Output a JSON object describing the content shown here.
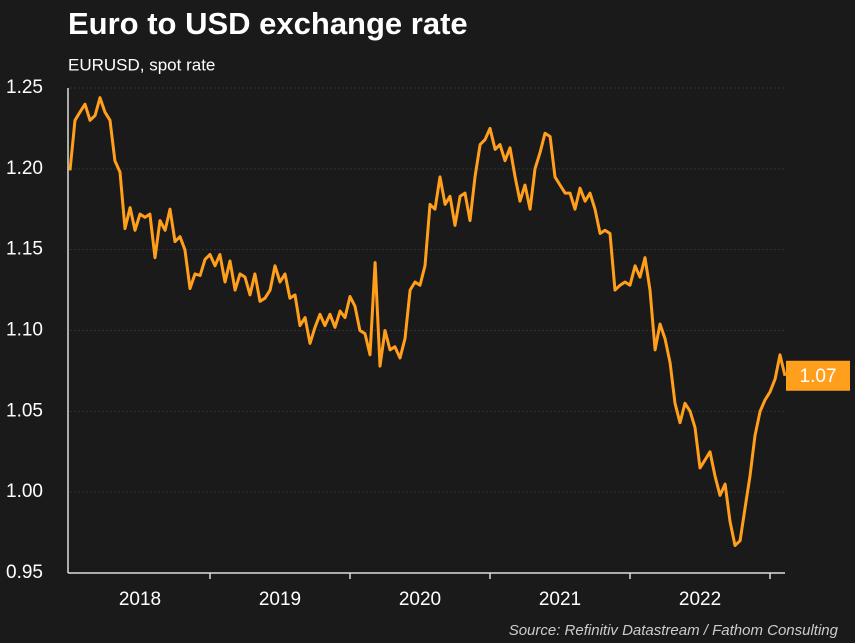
{
  "chart_data": {
    "type": "line",
    "title": "Euro to USD exchange rate",
    "subtitle": "EURUSD, spot rate",
    "source": "Source: Refinitiv Datastream / Fathom Consulting",
    "x": [
      2018,
      2018.036,
      2018.071,
      2018.107,
      2018.143,
      2018.179,
      2018.214,
      2018.25,
      2018.286,
      2018.321,
      2018.357,
      2018.393,
      2018.429,
      2018.464,
      2018.5,
      2018.536,
      2018.571,
      2018.607,
      2018.643,
      2018.679,
      2018.714,
      2018.75,
      2018.786,
      2018.821,
      2018.857,
      2018.893,
      2018.929,
      2018.964,
      2019,
      2019.036,
      2019.071,
      2019.107,
      2019.143,
      2019.179,
      2019.214,
      2019.25,
      2019.286,
      2019.321,
      2019.357,
      2019.393,
      2019.429,
      2019.464,
      2019.5,
      2019.536,
      2019.571,
      2019.607,
      2019.643,
      2019.679,
      2019.714,
      2019.75,
      2019.786,
      2019.821,
      2019.857,
      2019.893,
      2019.929,
      2019.964,
      2020,
      2020.036,
      2020.071,
      2020.107,
      2020.143,
      2020.179,
      2020.214,
      2020.25,
      2020.286,
      2020.321,
      2020.357,
      2020.393,
      2020.429,
      2020.464,
      2020.5,
      2020.536,
      2020.571,
      2020.607,
      2020.643,
      2020.679,
      2020.714,
      2020.75,
      2020.786,
      2020.821,
      2020.857,
      2020.893,
      2020.929,
      2020.964,
      2021,
      2021.036,
      2021.071,
      2021.107,
      2021.143,
      2021.179,
      2021.214,
      2021.25,
      2021.286,
      2021.321,
      2021.357,
      2021.393,
      2021.429,
      2021.464,
      2021.5,
      2021.536,
      2021.571,
      2021.607,
      2021.643,
      2021.679,
      2021.714,
      2021.75,
      2021.786,
      2021.821,
      2021.857,
      2021.893,
      2021.929,
      2021.964,
      2022,
      2022.036,
      2022.071,
      2022.107,
      2022.143,
      2022.179,
      2022.214,
      2022.25,
      2022.286,
      2022.321,
      2022.357,
      2022.393,
      2022.429,
      2022.464,
      2022.5,
      2022.536,
      2022.571,
      2022.607,
      2022.643,
      2022.679,
      2022.714,
      2022.75,
      2022.786,
      2022.821,
      2022.857,
      2022.893,
      2022.929,
      2022.964,
      2023,
      2023.036,
      2023.071,
      2023.107
    ],
    "series": [
      {
        "name": "EURUSD",
        "color": "#ff9f1c",
        "values": [
          1.199,
          1.23,
          1.235,
          1.24,
          1.23,
          1.233,
          1.244,
          1.235,
          1.23,
          1.205,
          1.198,
          1.163,
          1.176,
          1.162,
          1.172,
          1.17,
          1.172,
          1.145,
          1.168,
          1.162,
          1.175,
          1.155,
          1.158,
          1.15,
          1.126,
          1.135,
          1.134,
          1.144,
          1.147,
          1.14,
          1.147,
          1.13,
          1.143,
          1.125,
          1.135,
          1.133,
          1.122,
          1.135,
          1.118,
          1.12,
          1.125,
          1.14,
          1.13,
          1.135,
          1.12,
          1.122,
          1.103,
          1.108,
          1.092,
          1.102,
          1.11,
          1.103,
          1.11,
          1.102,
          1.112,
          1.108,
          1.121,
          1.115,
          1.1,
          1.098,
          1.085,
          1.142,
          1.078,
          1.1,
          1.088,
          1.09,
          1.083,
          1.095,
          1.125,
          1.13,
          1.128,
          1.14,
          1.178,
          1.175,
          1.195,
          1.178,
          1.183,
          1.165,
          1.183,
          1.185,
          1.168,
          1.195,
          1.215,
          1.218,
          1.225,
          1.212,
          1.215,
          1.205,
          1.213,
          1.195,
          1.18,
          1.19,
          1.175,
          1.2,
          1.21,
          1.222,
          1.22,
          1.195,
          1.19,
          1.185,
          1.185,
          1.175,
          1.188,
          1.18,
          1.185,
          1.175,
          1.16,
          1.162,
          1.16,
          1.125,
          1.128,
          1.13,
          1.128,
          1.14,
          1.133,
          1.145,
          1.125,
          1.088,
          1.104,
          1.095,
          1.08,
          1.055,
          1.043,
          1.055,
          1.05,
          1.04,
          1.015,
          1.02,
          1.025,
          1.01,
          0.998,
          1.005,
          0.982,
          0.967,
          0.97,
          0.99,
          1.01,
          1.035,
          1.05,
          1.057,
          1.062,
          1.07,
          1.085,
          1.072
        ]
      }
    ],
    "end_label": "1.07",
    "xlim": [
      2018,
      2023.107
    ],
    "xticks": [
      {
        "value": 2018.5,
        "label": "2018"
      },
      {
        "value": 2019.5,
        "label": "2019"
      },
      {
        "value": 2020.5,
        "label": "2020"
      },
      {
        "value": 2021.5,
        "label": "2021"
      },
      {
        "value": 2022.5,
        "label": "2022"
      }
    ],
    "ylim": [
      0.95,
      1.25
    ],
    "yticks": [
      0.95,
      {
        "value": 1,
        "label": "1.00"
      },
      1.05,
      {
        "value": 1.1,
        "label": "1.10"
      },
      1.15,
      {
        "value": 1.2,
        "label": "1.20"
      },
      1.25
    ],
    "grid": true
  }
}
